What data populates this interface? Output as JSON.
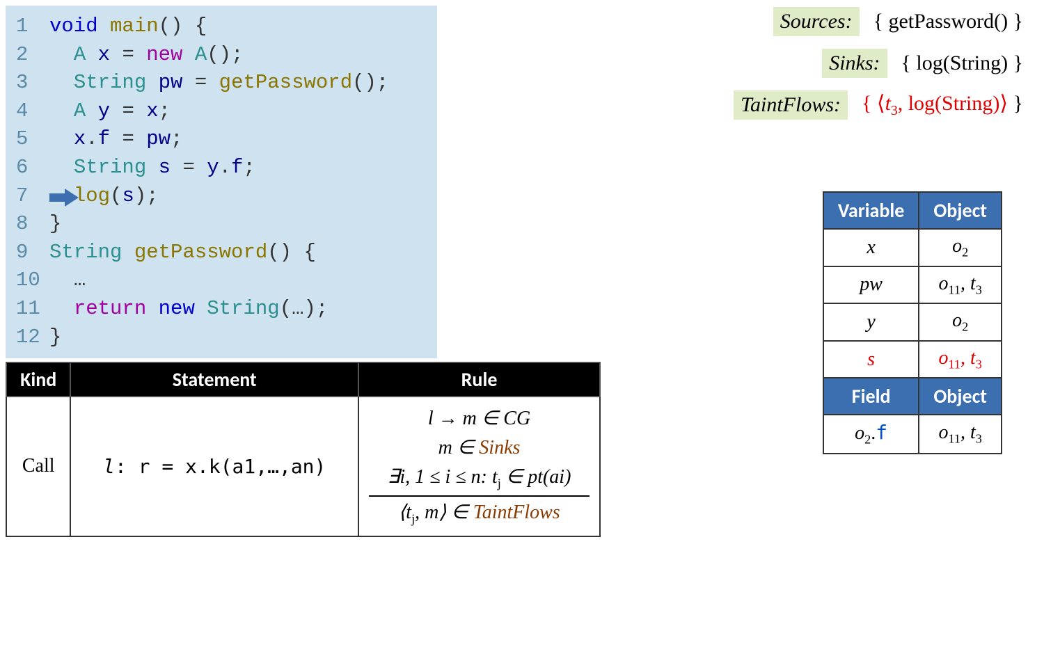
{
  "colors": {
    "code_bg": "#cfe2ef",
    "label_bg": "#e0ecc7",
    "table_header_bg": "#3b6fb0",
    "table_header_fg": "#ffffff",
    "rules_header_bg": "#000000",
    "red": "#e00000",
    "blue": "#0050d0",
    "brown": "#8b3a00",
    "keyword": "#0000d0",
    "type": "#2b8f8f",
    "variable": "#00008b",
    "method": "#8b7500",
    "new_kw": "#a000a0",
    "lineno": "#5a8aa8"
  },
  "code": {
    "lines": [
      {
        "n": "1",
        "pre": "",
        "tokens": [
          {
            "t": "void ",
            "c": "kw"
          },
          {
            "t": "main",
            "c": "method"
          },
          {
            "t": "() {",
            "c": "punct"
          }
        ]
      },
      {
        "n": "2",
        "pre": "  ",
        "tokens": [
          {
            "t": "A ",
            "c": "type"
          },
          {
            "t": "x ",
            "c": "var"
          },
          {
            "t": "= ",
            "c": "punct"
          },
          {
            "t": "new ",
            "c": "new"
          },
          {
            "t": "A",
            "c": "type"
          },
          {
            "t": "();",
            "c": "punct"
          }
        ]
      },
      {
        "n": "3",
        "pre": "  ",
        "tokens": [
          {
            "t": "String ",
            "c": "type"
          },
          {
            "t": "pw ",
            "c": "var"
          },
          {
            "t": "= ",
            "c": "punct"
          },
          {
            "t": "getPassword",
            "c": "method"
          },
          {
            "t": "();",
            "c": "punct"
          }
        ]
      },
      {
        "n": "4",
        "pre": "  ",
        "tokens": [
          {
            "t": "A ",
            "c": "type"
          },
          {
            "t": "y ",
            "c": "var"
          },
          {
            "t": "= ",
            "c": "punct"
          },
          {
            "t": "x",
            "c": "var"
          },
          {
            "t": ";",
            "c": "punct"
          }
        ]
      },
      {
        "n": "5",
        "pre": "  ",
        "tokens": [
          {
            "t": "x",
            "c": "var"
          },
          {
            "t": ".",
            "c": "punct"
          },
          {
            "t": "f ",
            "c": "var"
          },
          {
            "t": "= ",
            "c": "punct"
          },
          {
            "t": "pw",
            "c": "var"
          },
          {
            "t": ";",
            "c": "punct"
          }
        ]
      },
      {
        "n": "6",
        "pre": "  ",
        "tokens": [
          {
            "t": "String ",
            "c": "type"
          },
          {
            "t": "s ",
            "c": "var"
          },
          {
            "t": "= ",
            "c": "punct"
          },
          {
            "t": "y",
            "c": "var"
          },
          {
            "t": ".",
            "c": "punct"
          },
          {
            "t": "f",
            "c": "var"
          },
          {
            "t": ";",
            "c": "punct"
          }
        ]
      },
      {
        "n": "7",
        "pre": "  ",
        "tokens": [
          {
            "t": "log",
            "c": "method"
          },
          {
            "t": "(",
            "c": "punct"
          },
          {
            "t": "s",
            "c": "var"
          },
          {
            "t": ");",
            "c": "punct"
          }
        ],
        "arrow": true
      },
      {
        "n": "8",
        "pre": "",
        "tokens": [
          {
            "t": "}",
            "c": "punct"
          }
        ]
      },
      {
        "n": "9",
        "pre": "",
        "tokens": [
          {
            "t": "String ",
            "c": "type"
          },
          {
            "t": "getPassword",
            "c": "method"
          },
          {
            "t": "() {",
            "c": "punct"
          }
        ]
      },
      {
        "n": "10",
        "pre": "  ",
        "tokens": [
          {
            "t": "…",
            "c": "punct"
          }
        ]
      },
      {
        "n": "11",
        "pre": "  ",
        "tokens": [
          {
            "t": "return ",
            "c": "new"
          },
          {
            "t": "new ",
            "c": "kw"
          },
          {
            "t": "String",
            "c": "type"
          },
          {
            "t": "(…);",
            "c": "punct"
          }
        ]
      },
      {
        "n": "12",
        "pre": "",
        "tokens": [
          {
            "t": "}",
            "c": "punct"
          }
        ]
      }
    ]
  },
  "definitions": {
    "sources_label": "Sources:",
    "sources_value": "{ getPassword() }",
    "sinks_label": "Sinks:",
    "sinks_value": "{ log(String) }",
    "taintflows_label": "TaintFlows:",
    "taintflows_prefix": "{ ⟨",
    "taintflows_t": "t",
    "taintflows_sub": "3",
    "taintflows_mid": ", log(String)⟩",
    "taintflows_suffix": " }"
  },
  "points_to": {
    "header1_a": "Variable",
    "header1_b": "Object",
    "rows1": [
      {
        "v": "x",
        "o": "o",
        "osub": "2",
        "red": false
      },
      {
        "v": "pw",
        "o": "o",
        "osub": "11",
        "t": "t",
        "tsub": "3",
        "red": false
      },
      {
        "v": "y",
        "o": "o",
        "osub": "2",
        "red": false
      },
      {
        "v": "s",
        "o": "o",
        "osub": "11",
        "t": "t",
        "tsub": "3",
        "red": true
      }
    ],
    "header2_a": "Field",
    "header2_b": "Object",
    "rows2": [
      {
        "f_o": "o",
        "f_osub": "2",
        "f_dot": ".",
        "f_field": "f",
        "o": "o",
        "osub": "11",
        "t": "t",
        "tsub": "3"
      }
    ]
  },
  "rules": {
    "header_kind": "Kind",
    "header_stmt": "Statement",
    "header_rule": "Rule",
    "kind": "Call",
    "stmt_l": "l",
    "stmt_colon": ": ",
    "stmt_body": "r = x.k(a1,…,an)",
    "rule_l1_a": "l → m ∈ CG",
    "rule_l2_a": "m ∈ ",
    "rule_l2_b": "Sinks",
    "rule_l3": "∃i, 1 ≤ i ≤ n: t",
    "rule_l3_sub": "j",
    "rule_l3_b": " ∈ pt(ai)",
    "rule_l4_a": "⟨t",
    "rule_l4_sub": "j",
    "rule_l4_b": ", m⟩ ∈ ",
    "rule_l4_c": "TaintFlows"
  }
}
